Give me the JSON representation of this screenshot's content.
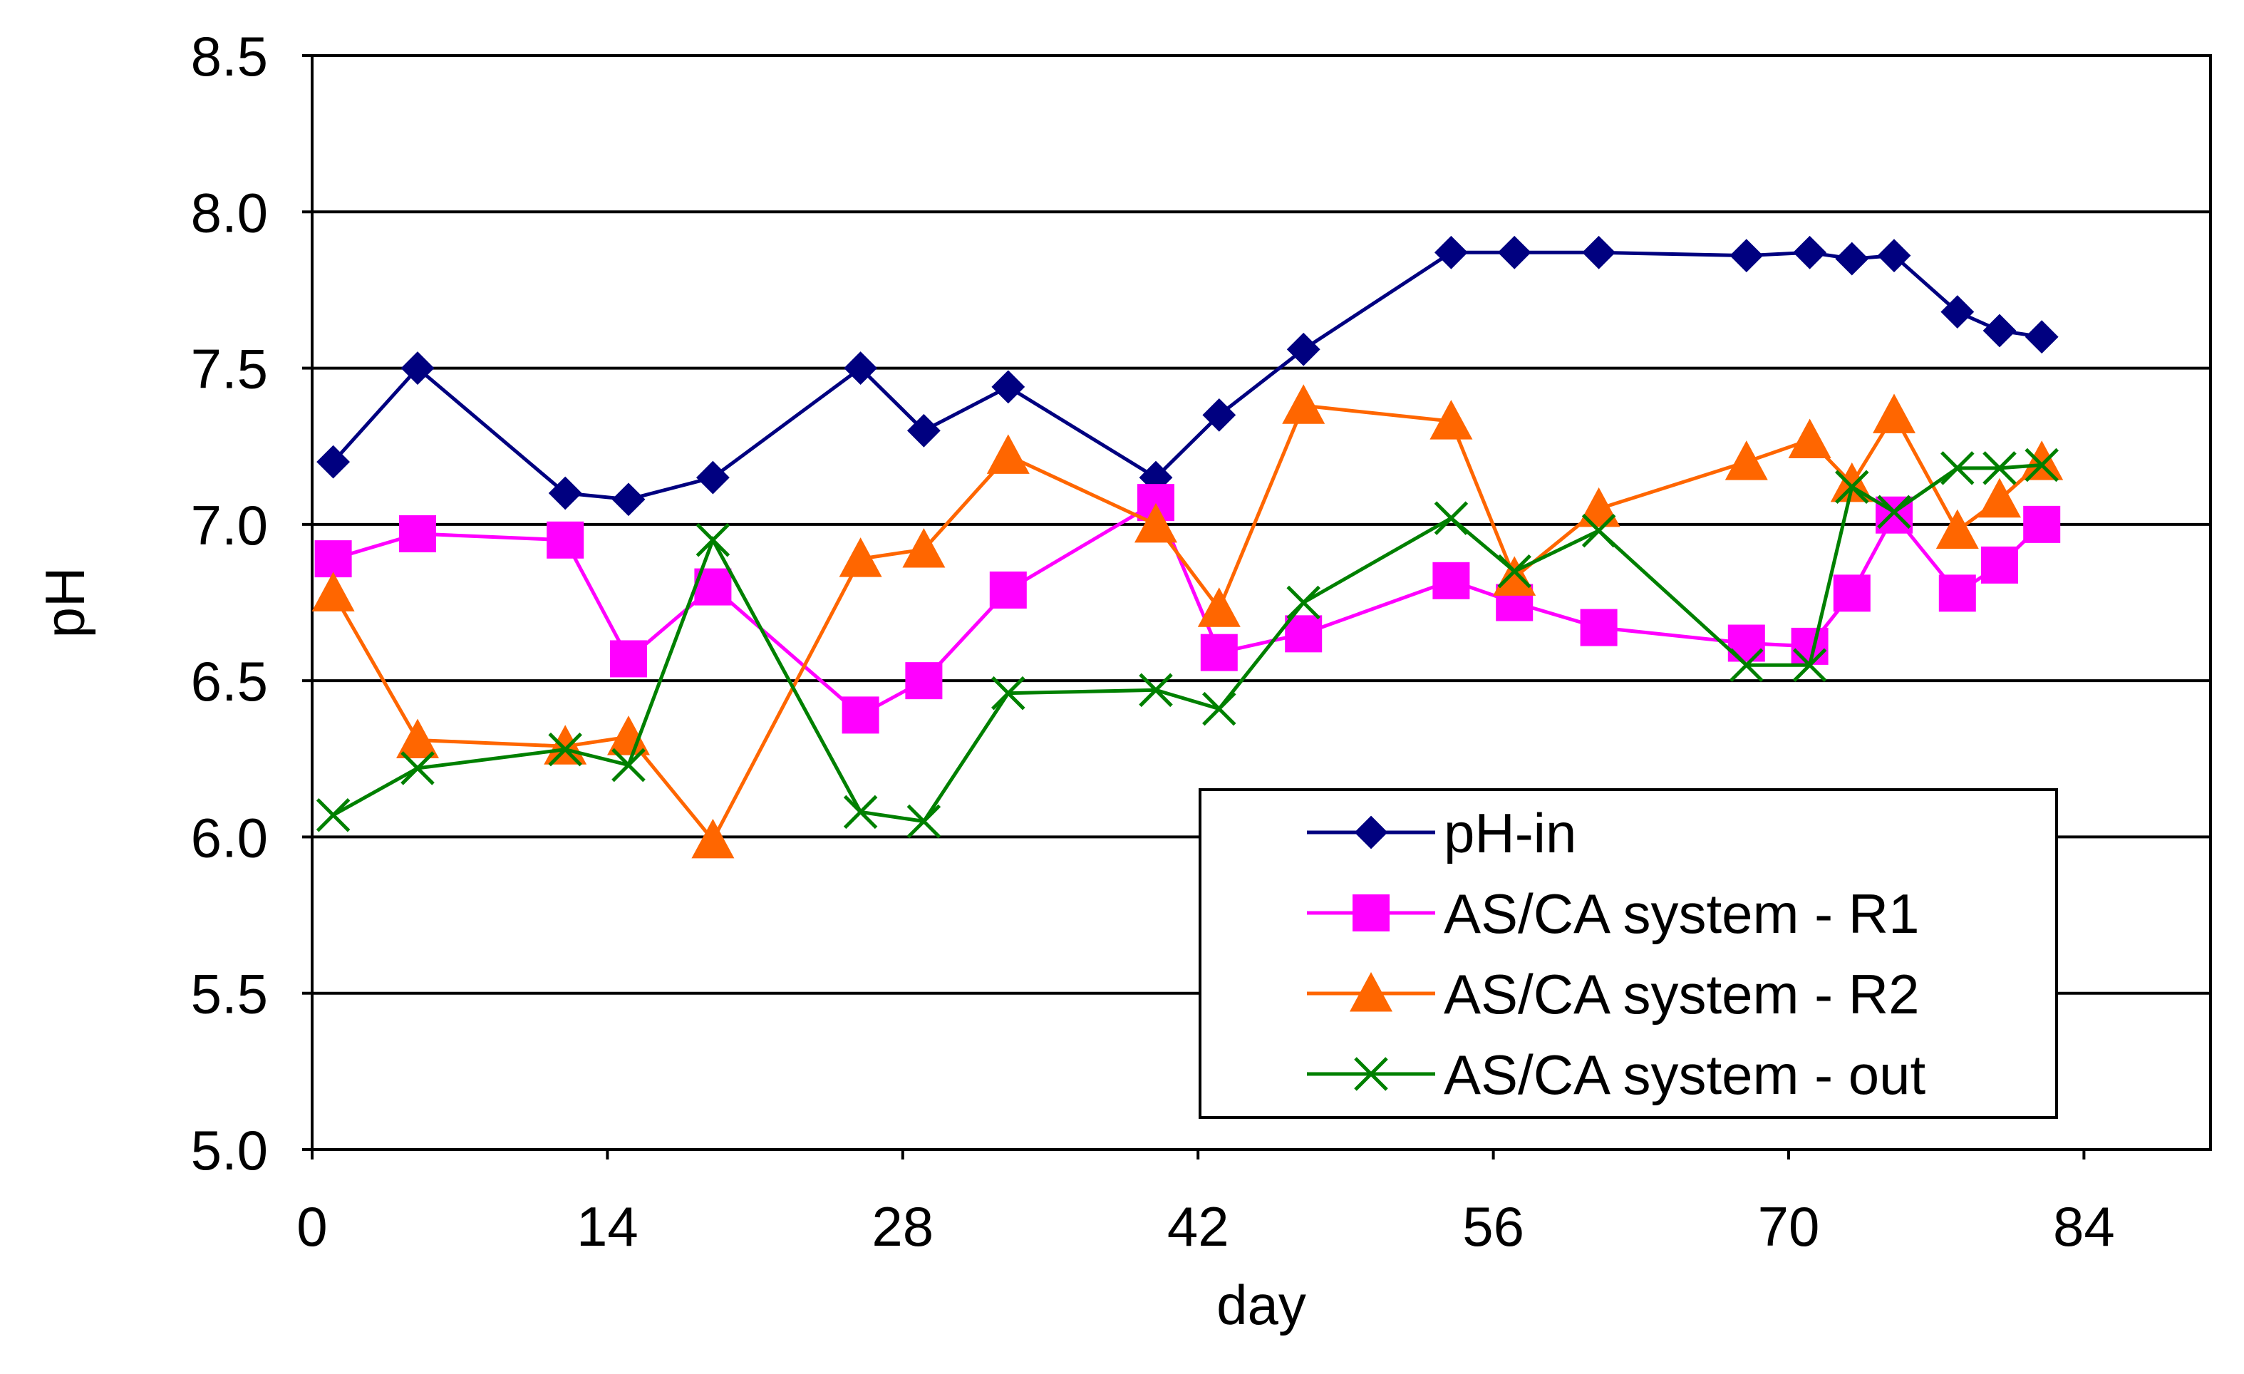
{
  "chart_data": {
    "type": "line",
    "title": "",
    "xlabel": "day",
    "ylabel": "pH",
    "xlim": [
      0,
      90
    ],
    "ylim": [
      5.0,
      8.5
    ],
    "xticks": [
      0,
      14,
      28,
      42,
      56,
      70,
      84
    ],
    "xtick_labels": [
      "0",
      "14",
      "28",
      "42",
      "56",
      "70",
      "84"
    ],
    "yticks": [
      5.0,
      5.5,
      6.0,
      6.5,
      7.0,
      7.5,
      8.0,
      8.5
    ],
    "ytick_labels": [
      "5.0",
      "5.5",
      "6.0",
      "6.5",
      "7.0",
      "7.5",
      "8.0",
      "8.5"
    ],
    "grid": "horizontal",
    "legend_position": "bottom-right",
    "series": [
      {
        "name": "pH-in",
        "color": "#000080",
        "marker": "diamond",
        "x": [
          1,
          5,
          12,
          15,
          19,
          26,
          29,
          33,
          40,
          43,
          47,
          54,
          57,
          61,
          68,
          71,
          73,
          75,
          78,
          80,
          82
        ],
        "y": [
          7.2,
          7.5,
          7.1,
          7.08,
          7.15,
          7.5,
          7.3,
          7.44,
          7.15,
          7.35,
          7.56,
          7.87,
          7.87,
          7.87,
          7.86,
          7.87,
          7.85,
          7.86,
          7.68,
          7.62,
          7.6
        ]
      },
      {
        "name": "AS/CA system - R1",
        "color": "#ff00ff",
        "marker": "square",
        "x": [
          1,
          5,
          12,
          15,
          19,
          26,
          29,
          33,
          40,
          43,
          47,
          54,
          57,
          61,
          68,
          71,
          73,
          75,
          78,
          80,
          82
        ],
        "y": [
          6.89,
          6.97,
          6.95,
          6.57,
          6.8,
          6.39,
          6.5,
          6.79,
          7.07,
          6.59,
          6.65,
          6.82,
          6.75,
          6.67,
          6.62,
          6.61,
          6.78,
          7.03,
          6.78,
          6.87,
          7.0
        ]
      },
      {
        "name": "AS/CA system - R2",
        "color": "#ff6600",
        "marker": "triangle",
        "x": [
          1,
          5,
          12,
          15,
          19,
          26,
          29,
          33,
          40,
          43,
          47,
          54,
          57,
          61,
          68,
          71,
          73,
          75,
          78,
          80,
          82
        ],
        "y": [
          6.78,
          6.31,
          6.29,
          6.32,
          5.99,
          6.89,
          6.92,
          7.22,
          7.0,
          6.73,
          7.38,
          7.33,
          6.83,
          7.05,
          7.2,
          7.27,
          7.13,
          7.35,
          6.98,
          7.08,
          7.2
        ]
      },
      {
        "name": "AS/CA system - out",
        "color": "#008000",
        "marker": "x",
        "x": [
          1,
          5,
          12,
          15,
          19,
          26,
          29,
          33,
          40,
          43,
          47,
          54,
          57,
          61,
          68,
          71,
          73,
          75,
          78,
          80,
          82
        ],
        "y": [
          6.07,
          6.22,
          6.28,
          6.23,
          6.95,
          6.08,
          6.05,
          6.46,
          6.47,
          6.41,
          6.75,
          7.02,
          6.85,
          6.98,
          6.55,
          6.55,
          7.12,
          7.04,
          7.18,
          7.18,
          7.19
        ]
      }
    ]
  }
}
